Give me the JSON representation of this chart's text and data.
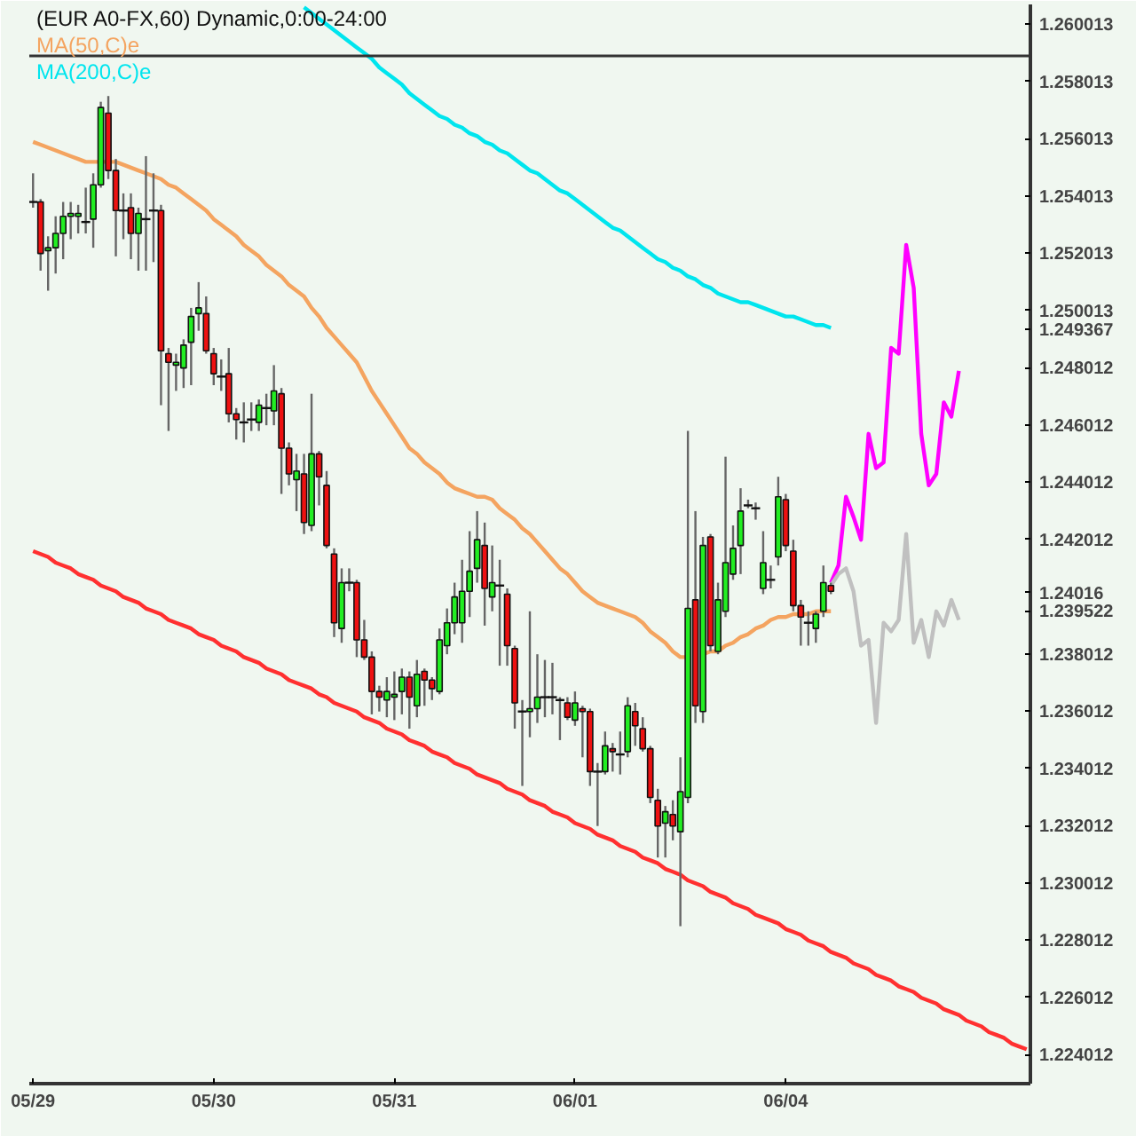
{
  "chart_data": {
    "type": "candlestick",
    "title": "(EUR A0-FX,60) Dynamic,0:00-24:00",
    "categories": [
      "05/29",
      null,
      null,
      null,
      null,
      null,
      null,
      null,
      null,
      null,
      null,
      null,
      null,
      null,
      null,
      null,
      null,
      null,
      null,
      null,
      null,
      null,
      null,
      null,
      "05/30",
      null,
      null,
      null,
      null,
      null,
      null,
      null,
      null,
      null,
      null,
      null,
      null,
      null,
      null,
      null,
      null,
      null,
      null,
      null,
      null,
      null,
      null,
      null,
      "05/31",
      null,
      null,
      null,
      null,
      null,
      null,
      null,
      null,
      null,
      null,
      null,
      null,
      null,
      null,
      null,
      null,
      null,
      null,
      null,
      null,
      null,
      null,
      null,
      "06/01",
      null,
      null,
      null,
      null,
      null,
      null,
      null,
      null,
      null,
      null,
      null,
      null,
      null,
      null,
      null,
      null,
      null,
      null,
      null,
      null,
      null,
      null,
      null,
      null,
      null,
      null,
      null,
      "06/04",
      null,
      null,
      null,
      null,
      null,
      null,
      null,
      null,
      null,
      null,
      null,
      null,
      null,
      null,
      null,
      null,
      null,
      null,
      null,
      null,
      null,
      null,
      null,
      null,
      null,
      null,
      null,
      null,
      null,
      null,
      null,
      null
    ],
    "ohlc": [
      [
        1.2538,
        1.2548,
        1.2536,
        1.2538
      ],
      [
        1.2538,
        1.2539,
        1.2514,
        1.252
      ],
      [
        1.2521,
        1.2526,
        1.2507,
        1.2522
      ],
      [
        1.2522,
        1.2533,
        1.2513,
        1.2527
      ],
      [
        1.2527,
        1.2538,
        1.2518,
        1.2533
      ],
      [
        1.2533,
        1.2538,
        1.2525,
        1.2534
      ],
      [
        1.2533,
        1.2537,
        1.2527,
        1.2534
      ],
      [
        1.2531,
        1.2543,
        1.2527,
        1.2531
      ],
      [
        1.2532,
        1.2548,
        1.2522,
        1.2544
      ],
      [
        1.2544,
        1.2573,
        1.2543,
        1.2571
      ],
      [
        1.2569,
        1.2575,
        1.2546,
        1.2549
      ],
      [
        1.2549,
        1.2553,
        1.2519,
        1.2535
      ],
      [
        1.2535,
        1.2541,
        1.2525,
        1.2535
      ],
      [
        1.2536,
        1.2541,
        1.2518,
        1.2527
      ],
      [
        1.2527,
        1.2536,
        1.2514,
        1.2534
      ],
      [
        1.2532,
        1.2554,
        1.2514,
        1.2532
      ],
      [
        1.2535,
        1.2548,
        1.2517,
        1.2535
      ],
      [
        1.2535,
        1.2537,
        1.2467,
        1.2486
      ],
      [
        1.2485,
        1.2487,
        1.2458,
        1.2482
      ],
      [
        1.2481,
        1.2485,
        1.2472,
        1.2482
      ],
      [
        1.248,
        1.249,
        1.2473,
        1.2488
      ],
      [
        1.2489,
        1.2501,
        1.2474,
        1.2498
      ],
      [
        1.2499,
        1.251,
        1.2493,
        1.2501
      ],
      [
        1.2499,
        1.2505,
        1.2485,
        1.2486
      ],
      [
        1.2485,
        1.2487,
        1.2474,
        1.2478
      ],
      [
        1.2477,
        1.2483,
        1.2472,
        1.2477
      ],
      [
        1.2478,
        1.2487,
        1.2461,
        1.2464
      ],
      [
        1.2464,
        1.2466,
        1.2455,
        1.2462
      ],
      [
        1.2461,
        1.2468,
        1.2454,
        1.2461
      ],
      [
        1.2462,
        1.2468,
        1.2458,
        1.2462
      ],
      [
        1.2461,
        1.2469,
        1.2458,
        1.2467
      ],
      [
        1.2466,
        1.2471,
        1.246,
        1.2466
      ],
      [
        1.2465,
        1.2481,
        1.246,
        1.2472
      ],
      [
        1.2471,
        1.2473,
        1.2436,
        1.2452
      ],
      [
        1.2452,
        1.2454,
        1.2439,
        1.2443
      ],
      [
        1.2441,
        1.245,
        1.243,
        1.2444
      ],
      [
        1.2443,
        1.245,
        1.2422,
        1.2426
      ],
      [
        1.2425,
        1.2471,
        1.2423,
        1.245
      ],
      [
        1.245,
        1.2451,
        1.2432,
        1.2442
      ],
      [
        1.2439,
        1.2444,
        1.2417,
        1.2418
      ],
      [
        1.2415,
        1.2417,
        1.2386,
        1.2391
      ],
      [
        1.2389,
        1.241,
        1.2384,
        1.2405
      ],
      [
        1.2405,
        1.241,
        1.2402,
        1.2405
      ],
      [
        1.2405,
        1.2406,
        1.2379,
        1.2385
      ],
      [
        1.2385,
        1.2392,
        1.2378,
        1.2379
      ],
      [
        1.2379,
        1.2381,
        1.2359,
        1.2367
      ],
      [
        1.2367,
        1.2369,
        1.236,
        1.2365
      ],
      [
        1.2364,
        1.2372,
        1.2358,
        1.2367
      ],
      [
        1.2365,
        1.2374,
        1.2357,
        1.2366
      ],
      [
        1.2367,
        1.2375,
        1.2359,
        1.2372
      ],
      [
        1.2372,
        1.2374,
        1.2354,
        1.2365
      ],
      [
        1.2362,
        1.2378,
        1.2358,
        1.2373
      ],
      [
        1.2374,
        1.2375,
        1.2362,
        1.2371
      ],
      [
        1.2371,
        1.2372,
        1.2364,
        1.2368
      ],
      [
        1.2367,
        1.2389,
        1.2366,
        1.2385
      ],
      [
        1.2383,
        1.2396,
        1.238,
        1.2391
      ],
      [
        1.2391,
        1.2405,
        1.2387,
        1.24
      ],
      [
        1.2391,
        1.2413,
        1.2384,
        1.2402
      ],
      [
        1.2402,
        1.2423,
        1.2393,
        1.2409
      ],
      [
        1.241,
        1.243,
        1.2405,
        1.242
      ],
      [
        1.2418,
        1.2426,
        1.239,
        1.2403
      ],
      [
        1.24,
        1.2418,
        1.2395,
        1.2405
      ],
      [
        1.2404,
        1.2413,
        1.2376,
        1.2404
      ],
      [
        1.2401,
        1.2403,
        1.2376,
        1.2383
      ],
      [
        1.2382,
        1.2383,
        1.2354,
        1.2363
      ],
      [
        1.236,
        1.2364,
        1.2334,
        1.236
      ],
      [
        1.236,
        1.2395,
        1.2351,
        1.2361
      ],
      [
        1.2361,
        1.238,
        1.2356,
        1.2365
      ],
      [
        1.2365,
        1.2378,
        1.2358,
        1.2365
      ],
      [
        1.2365,
        1.2377,
        1.2359,
        1.2365
      ],
      [
        1.2364,
        1.2365,
        1.235,
        1.2364
      ],
      [
        1.2363,
        1.2365,
        1.2357,
        1.2358
      ],
      [
        1.2357,
        1.2367,
        1.2355,
        1.2363
      ],
      [
        1.2361,
        1.2362,
        1.2344,
        1.236
      ],
      [
        1.236,
        1.2361,
        1.2334,
        1.2339
      ],
      [
        1.2339,
        1.2342,
        1.232,
        1.2339
      ],
      [
        1.2339,
        1.2353,
        1.2338,
        1.2348
      ],
      [
        1.2347,
        1.2349,
        1.2339,
        1.2346
      ],
      [
        1.2345,
        1.2353,
        1.2338,
        1.2345
      ],
      [
        1.2346,
        1.2365,
        1.2344,
        1.2362
      ],
      [
        1.236,
        1.2363,
        1.2348,
        1.2355
      ],
      [
        1.2354,
        1.2358,
        1.2346,
        1.2347
      ],
      [
        1.2347,
        1.2348,
        1.2328,
        1.233
      ],
      [
        1.2329,
        1.2333,
        1.2309,
        1.232
      ],
      [
        1.2321,
        1.2327,
        1.2309,
        1.2325
      ],
      [
        1.2324,
        1.2329,
        1.2315,
        1.232
      ],
      [
        1.2318,
        1.2344,
        1.2285,
        1.2332
      ],
      [
        1.233,
        1.2458,
        1.2328,
        1.2396
      ],
      [
        1.2399,
        1.243,
        1.2356,
        1.2362
      ],
      [
        1.236,
        1.2421,
        1.2356,
        1.2418
      ],
      [
        1.2421,
        1.2422,
        1.2381,
        1.2383
      ],
      [
        1.2381,
        1.2405,
        1.238,
        1.2399
      ],
      [
        1.2395,
        1.2449,
        1.2393,
        1.2412
      ],
      [
        1.2408,
        1.2425,
        1.2406,
        1.2417
      ],
      [
        1.2418,
        1.2438,
        1.2408,
        1.243
      ],
      [
        1.2432,
        1.2434,
        1.2431,
        1.2432
      ],
      [
        1.2431,
        1.2433,
        1.2427,
        1.2431
      ],
      [
        1.2403,
        1.2423,
        1.2401,
        1.2412
      ],
      [
        1.2406,
        1.2411,
        1.2403,
        1.2406
      ],
      [
        1.2414,
        1.2442,
        1.2411,
        1.2435
      ],
      [
        1.2434,
        1.2436,
        1.2416,
        1.2418
      ],
      [
        1.2416,
        1.242,
        1.2395,
        1.2397
      ],
      [
        1.2397,
        1.2399,
        1.2383,
        1.2393
      ],
      [
        1.2391,
        1.2395,
        1.2383,
        1.2391
      ],
      [
        1.2389,
        1.2395,
        1.2384,
        1.2394
      ],
      [
        1.2395,
        1.2411,
        1.2393,
        1.2405
      ],
      [
        1.2404,
        1.2405,
        1.2401,
        1.2402
      ],
      null,
      null,
      null,
      null,
      null,
      null,
      null,
      null,
      null,
      null,
      null,
      null,
      null,
      null,
      null,
      null,
      null,
      null,
      null,
      null,
      null,
      null,
      null,
      null,
      null,
      null
    ],
    "series": [
      {
        "name": "MA(50,C)e",
        "type": "line",
        "color": "#f4a460",
        "values": [
          1.2559,
          1.2558,
          1.2557,
          1.2556,
          1.2555,
          1.2554,
          1.2553,
          1.2552,
          1.2552,
          1.2552,
          1.2552,
          1.2552,
          1.2551,
          1.255,
          1.2549,
          1.2548,
          1.2547,
          1.2546,
          1.2544,
          1.2543,
          1.2541,
          1.2539,
          1.2537,
          1.2535,
          1.2532,
          1.253,
          1.2528,
          1.2526,
          1.2523,
          1.2521,
          1.2519,
          1.2516,
          1.2514,
          1.2512,
          1.2509,
          1.2507,
          1.2505,
          1.2501,
          1.2498,
          1.2494,
          1.2491,
          1.2488,
          1.2485,
          1.2482,
          1.2477,
          1.2472,
          1.2468,
          1.2464,
          1.246,
          1.2456,
          1.2452,
          1.245,
          1.2447,
          1.2445,
          1.2443,
          1.244,
          1.2438,
          1.2437,
          1.2436,
          1.2435,
          1.2435,
          1.2434,
          1.2431,
          1.2429,
          1.2427,
          1.2424,
          1.2422,
          1.2419,
          1.2416,
          1.2413,
          1.241,
          1.2408,
          1.2405,
          1.2402,
          1.24,
          1.2398,
          1.2397,
          1.2396,
          1.2395,
          1.2394,
          1.2393,
          1.2391,
          1.2388,
          1.2386,
          1.2384,
          1.2381,
          1.2379,
          1.2379,
          null,
          1.238,
          1.2381,
          1.2381,
          1.2383,
          1.2384,
          1.2386,
          1.2387,
          1.2389,
          1.239,
          1.2392,
          1.2393,
          1.2393,
          1.2394,
          1.2394,
          1.2394,
          1.2395,
          1.2395,
          1.2395,
          null,
          null,
          null,
          null,
          null,
          null,
          null,
          null,
          null,
          null,
          null,
          null,
          null,
          null,
          null,
          null,
          null,
          null,
          null,
          null,
          null,
          null,
          null,
          null,
          null,
          null
        ]
      },
      {
        "name": "MA(200,C)e",
        "type": "line",
        "color": "#00e5ee",
        "values": [
          null,
          null,
          null,
          null,
          null,
          null,
          null,
          null,
          null,
          null,
          null,
          null,
          null,
          null,
          null,
          null,
          null,
          null,
          null,
          null,
          null,
          null,
          null,
          null,
          null,
          null,
          null,
          null,
          null,
          null,
          null,
          null,
          null,
          null,
          null,
          null,
          1.2606,
          1.2604,
          1.2602,
          1.26,
          1.2598,
          1.2596,
          1.2594,
          1.2592,
          1.259,
          1.2588,
          1.2585,
          1.2583,
          1.2581,
          1.2579,
          1.2576,
          1.2574,
          1.2572,
          1.257,
          1.2568,
          1.2567,
          1.2565,
          1.2564,
          1.2562,
          1.2561,
          1.2559,
          1.2558,
          1.2556,
          1.2555,
          1.2553,
          1.2551,
          1.2549,
          1.2548,
          1.2546,
          1.2544,
          1.2542,
          1.2541,
          1.2539,
          1.2537,
          1.2535,
          1.2533,
          1.2531,
          1.2529,
          1.2528,
          1.2526,
          1.2524,
          1.2522,
          1.252,
          1.2518,
          1.2517,
          1.2515,
          1.2514,
          1.2512,
          1.2511,
          1.2509,
          1.2508,
          1.2506,
          1.2505,
          1.2504,
          1.2503,
          1.2503,
          1.2502,
          1.2501,
          1.25,
          1.2499,
          1.2498,
          1.2498,
          1.2497,
          1.2496,
          1.2495,
          1.2495,
          1.2494,
          null,
          null,
          null,
          null,
          null,
          null,
          null,
          null,
          null,
          null,
          null,
          null,
          null,
          null,
          null,
          null,
          null,
          null,
          null,
          null,
          null,
          null,
          null,
          null,
          null,
          null
        ]
      },
      {
        "type": "line",
        "color": "#ff00ff",
        "values": [
          null,
          null,
          null,
          null,
          null,
          null,
          null,
          null,
          null,
          null,
          null,
          null,
          null,
          null,
          null,
          null,
          null,
          null,
          null,
          null,
          null,
          null,
          null,
          null,
          null,
          null,
          null,
          null,
          null,
          null,
          null,
          null,
          null,
          null,
          null,
          null,
          null,
          null,
          null,
          null,
          null,
          null,
          null,
          null,
          null,
          null,
          null,
          null,
          null,
          null,
          null,
          null,
          null,
          null,
          null,
          null,
          null,
          null,
          null,
          null,
          null,
          null,
          null,
          null,
          null,
          null,
          null,
          null,
          null,
          null,
          null,
          null,
          null,
          null,
          null,
          null,
          null,
          null,
          null,
          null,
          null,
          null,
          null,
          null,
          null,
          null,
          null,
          null,
          null,
          null,
          null,
          null,
          null,
          null,
          null,
          null,
          null,
          null,
          null,
          null,
          null,
          null,
          null,
          null,
          null,
          null,
          1.2405,
          1.2411,
          1.2435,
          1.2428,
          1.242,
          1.2457,
          1.2445,
          1.2447,
          1.2487,
          1.2485,
          1.2523,
          1.2508,
          1.2457,
          1.2439,
          1.2443,
          1.2468,
          1.2463,
          1.2479,
          null,
          null,
          null,
          null,
          null,
          null,
          null,
          null,
          null
        ]
      },
      {
        "type": "line",
        "color": "#c0c0c0",
        "values": [
          null,
          null,
          null,
          null,
          null,
          null,
          null,
          null,
          null,
          null,
          null,
          null,
          null,
          null,
          null,
          null,
          null,
          null,
          null,
          null,
          null,
          null,
          null,
          null,
          null,
          null,
          null,
          null,
          null,
          null,
          null,
          null,
          null,
          null,
          null,
          null,
          null,
          null,
          null,
          null,
          null,
          null,
          null,
          null,
          null,
          null,
          null,
          null,
          null,
          null,
          null,
          null,
          null,
          null,
          null,
          null,
          null,
          null,
          null,
          null,
          null,
          null,
          null,
          null,
          null,
          null,
          null,
          null,
          null,
          null,
          null,
          null,
          null,
          null,
          null,
          null,
          null,
          null,
          null,
          null,
          null,
          null,
          null,
          null,
          null,
          null,
          null,
          null,
          null,
          null,
          null,
          null,
          null,
          null,
          null,
          null,
          null,
          null,
          null,
          null,
          null,
          null,
          null,
          null,
          null,
          null,
          1.2404,
          1.2408,
          1.241,
          1.2402,
          1.2383,
          1.2385,
          1.2356,
          1.2391,
          1.2388,
          1.2392,
          1.2422,
          1.2384,
          1.2392,
          1.2379,
          1.2395,
          1.239,
          1.2399,
          1.2392,
          null,
          null,
          null,
          null,
          null,
          null,
          null,
          null,
          null
        ]
      },
      {
        "type": "line",
        "color": "#ff3030",
        "values": [
          1.2416,
          1.2415,
          1.2414,
          1.2412,
          1.2411,
          1.241,
          1.2408,
          1.2407,
          1.2406,
          1.2404,
          1.2403,
          1.2402,
          1.24,
          1.2399,
          1.2398,
          1.2396,
          1.2395,
          1.2394,
          1.2392,
          1.2391,
          1.239,
          1.2389,
          1.2387,
          1.2386,
          1.2385,
          1.2383,
          1.2382,
          1.2381,
          1.2379,
          1.2378,
          1.2377,
          1.2375,
          1.2374,
          1.2373,
          1.2371,
          1.237,
          1.2369,
          1.2368,
          1.2366,
          1.2365,
          1.2363,
          1.2362,
          1.2361,
          1.236,
          1.2358,
          1.2357,
          1.2356,
          1.2354,
          1.2353,
          1.2352,
          1.235,
          1.2349,
          1.2348,
          1.2346,
          1.2345,
          1.2344,
          1.2342,
          1.2341,
          1.234,
          1.2338,
          1.2337,
          1.2336,
          1.2335,
          1.2333,
          1.2332,
          1.2331,
          1.2329,
          1.2328,
          1.2327,
          1.2325,
          1.2324,
          1.2323,
          1.2321,
          1.232,
          1.2319,
          1.2317,
          1.2316,
          1.2315,
          1.2313,
          1.2312,
          1.2311,
          1.2309,
          1.2308,
          1.2307,
          1.2305,
          1.2304,
          1.2303,
          1.2301,
          1.23,
          1.2299,
          1.2297,
          1.2296,
          1.2295,
          1.2293,
          1.2292,
          1.2291,
          1.2289,
          1.2288,
          1.2287,
          1.2286,
          1.2284,
          1.2283,
          1.2282,
          1.228,
          1.2279,
          1.2278,
          1.2276,
          1.2275,
          1.2274,
          1.2272,
          1.2271,
          1.227,
          1.2268,
          1.2267,
          1.2266,
          1.2264,
          1.2263,
          1.2262,
          1.226,
          1.2259,
          1.2258,
          1.2256,
          1.2255,
          1.2254,
          1.2252,
          1.2251,
          1.225,
          1.2248,
          1.2247,
          1.2246,
          1.2244,
          1.2243,
          1.2242
        ]
      }
    ],
    "ref_lines": [
      {
        "axis": "y",
        "value": 1.2589,
        "color": "#333333"
      }
    ],
    "ylim": [
      1.223,
      1.2607
    ],
    "yticks": [
      1.260013,
      1.258013,
      1.256013,
      1.254013,
      1.252013,
      1.250013,
      1.249367,
      1.248012,
      1.246012,
      1.244012,
      1.242012,
      1.24016,
      1.239522,
      1.238012,
      1.236012,
      1.234012,
      1.232012,
      1.230012,
      1.228012,
      1.226012,
      1.224012
    ],
    "grid": false,
    "legend": "top left"
  }
}
